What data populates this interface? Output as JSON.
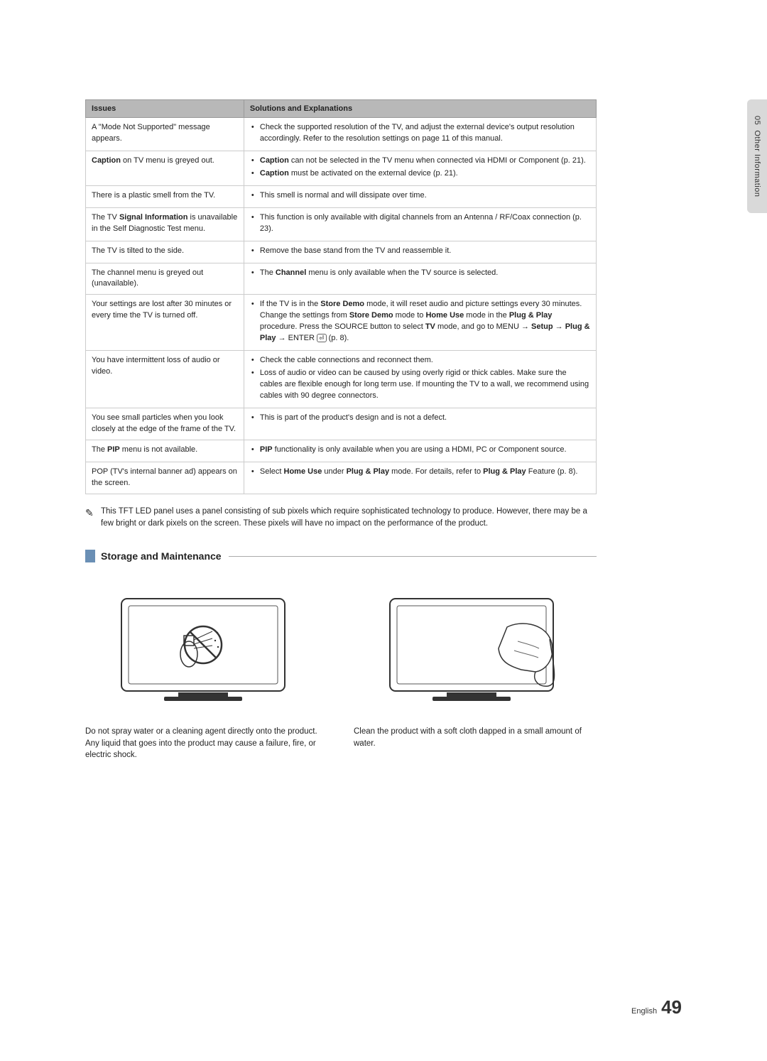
{
  "sideTab": {
    "chapter": "05",
    "title": "Other Information"
  },
  "table": {
    "headers": [
      "Issues",
      "Solutions and Explanations"
    ],
    "rows": [
      {
        "issue_html": "A \"Mode Not Supported\" message appears.",
        "sols": [
          "Check the supported resolution of the TV, and adjust the external device's output resolution accordingly. Refer to the resolution settings on page 11 of this manual."
        ]
      },
      {
        "issue_html": "<b>Caption</b> on TV menu is greyed out.",
        "sols": [
          "<b>Caption</b> can not be selected in the TV menu when connected via HDMI or Component (p. 21).",
          "<b>Caption</b> must be activated on the external device (p. 21)."
        ]
      },
      {
        "issue_html": "There is a plastic smell from the TV.",
        "sols": [
          "This smell is normal and will dissipate over time."
        ]
      },
      {
        "issue_html": "The TV <b>Signal Information</b> is unavailable in the Self Diagnostic Test menu.",
        "sols": [
          "This function is only available with digital channels from an Antenna / RF/Coax connection (p. 23)."
        ]
      },
      {
        "issue_html": "The TV is tilted to the side.",
        "sols": [
          "Remove the base stand from the TV and reassemble it."
        ]
      },
      {
        "issue_html": "The channel menu is greyed out (unavailable).",
        "sols": [
          "The <b>Channel</b> menu is only available when the TV source is selected."
        ]
      },
      {
        "issue_html": "Your settings are lost after 30 minutes or every time the TV is turned off.",
        "sols": [
          "If the TV is in the <b>Store Demo</b> mode, it will reset audio and picture settings every 30 minutes. Change the settings from <b>Store Demo</b> mode to <b>Home Use</b> mode in the <b>Plug &amp; Play</b> procedure. Press the SOURCE button to select <b>TV</b> mode, and go to MENU → <b>Setup</b> → <b>Plug &amp; Play</b> → ENTER <span style='border:1px solid #666;border-radius:3px;padding:0 2px;font-size:9px;'>⏎</span> (p. 8)."
        ]
      },
      {
        "issue_html": "You have intermittent loss of audio or video.",
        "sols": [
          "Check the cable connections and reconnect them.",
          "Loss of audio or video can be caused by using overly rigid or thick cables. Make sure the cables are flexible enough for long term use. If mounting the TV to a wall, we recommend using cables with 90 degree connectors."
        ]
      },
      {
        "issue_html": "You see small particles when you look closely at the edge of the frame of the TV.",
        "sols": [
          "This is part of the product's design and is not a defect."
        ]
      },
      {
        "issue_html": "The <b>PIP</b> menu is not available.",
        "sols": [
          "<b>PIP</b> functionality is only available when you are using a HDMI, PC or Component source."
        ]
      },
      {
        "issue_html": "POP (TV's internal banner ad) appears on the screen.",
        "sols": [
          "Select <b>Home Use</b> under <b>Plug &amp; Play</b> mode. For details, refer to <b>Plug &amp; Play</b> Feature (p. 8)."
        ]
      }
    ]
  },
  "note": "This TFT LED panel uses a panel consisting of sub pixels which require sophisticated technology to produce. However, there may be a few bright or dark pixels on the screen. These pixels will have no impact on the performance of the product.",
  "section": {
    "title": "Storage and Maintenance"
  },
  "captions": {
    "left": "Do not spray water or a cleaning agent directly onto the product. Any liquid that goes into the product may cause a failure, fire, or electric shock.",
    "right": "Clean the product with a soft cloth dapped in a small amount of water."
  },
  "footer": {
    "lang": "English",
    "page": "49"
  },
  "colors": {
    "header_bg": "#b8b8b8",
    "border": "#cccccc",
    "section_bar": "#6a8fb5",
    "sidetab_bg": "#d9d9d9"
  }
}
